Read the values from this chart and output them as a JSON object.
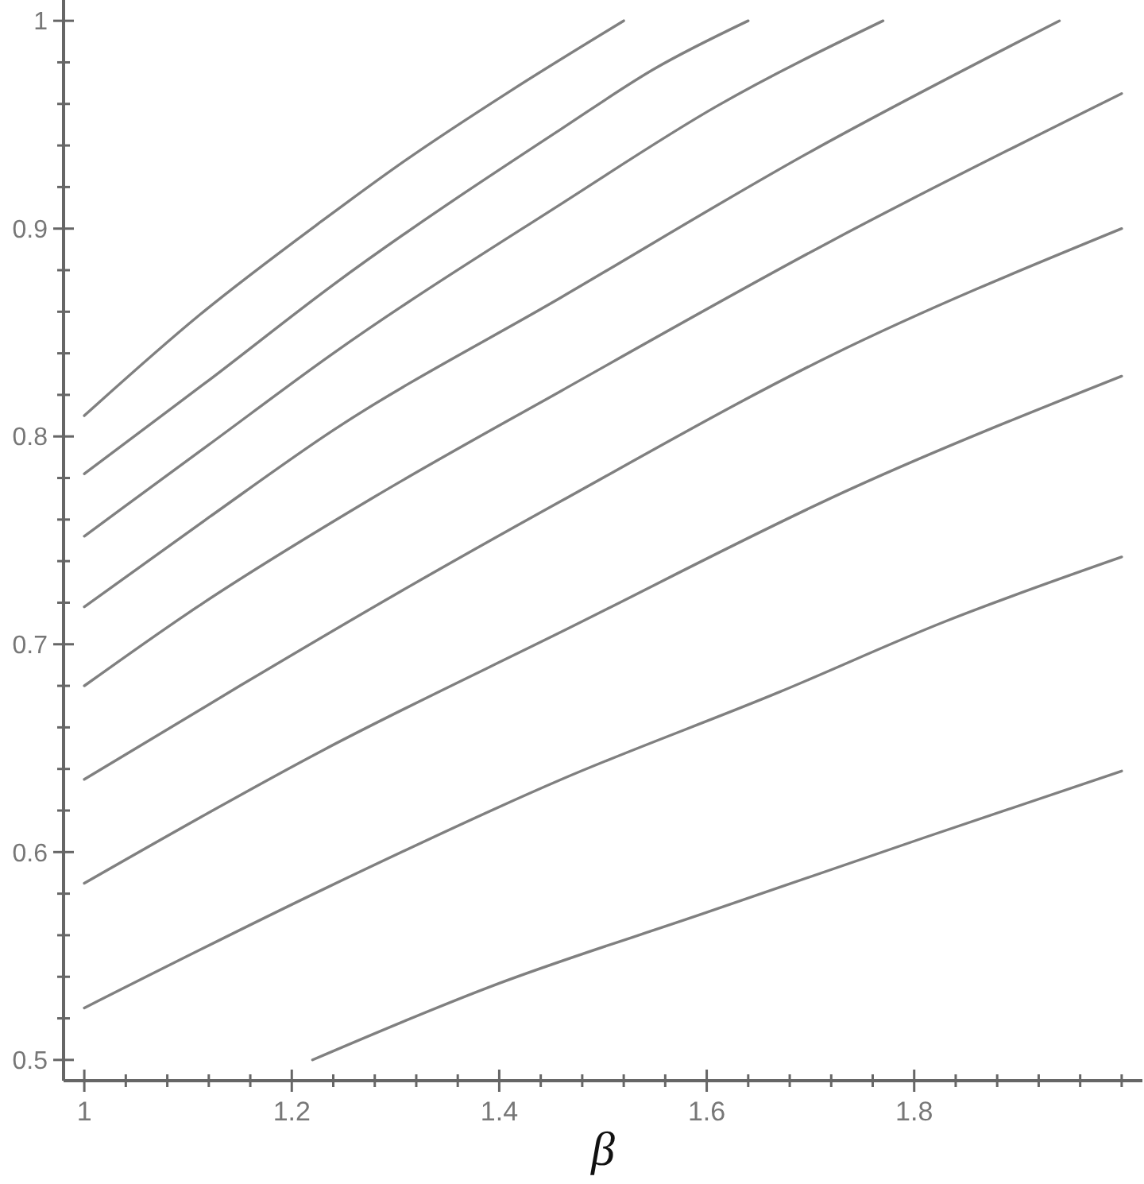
{
  "chart_data": {
    "type": "line",
    "xlabel": "β",
    "xlim": [
      0.98,
      2.02
    ],
    "ylim": [
      0.49,
      1.01
    ],
    "xticks": [
      1,
      {
        "value": 1.04,
        "label": null
      },
      {
        "value": 1.08,
        "label": null
      },
      {
        "value": 1.12,
        "label": null
      },
      {
        "value": 1.16,
        "label": null
      },
      1.2,
      {
        "value": 1.24,
        "label": null
      },
      {
        "value": 1.28,
        "label": null
      },
      {
        "value": 1.32,
        "label": null
      },
      {
        "value": 1.36,
        "label": null
      },
      1.4,
      {
        "value": 1.44,
        "label": null
      },
      {
        "value": 1.48,
        "label": null
      },
      {
        "value": 1.52,
        "label": null
      },
      {
        "value": 1.56,
        "label": null
      },
      1.6,
      {
        "value": 1.64,
        "label": null
      },
      {
        "value": 1.68,
        "label": null
      },
      {
        "value": 1.72,
        "label": null
      },
      {
        "value": 1.76,
        "label": null
      },
      1.8,
      {
        "value": 1.84,
        "label": null
      },
      {
        "value": 1.88,
        "label": null
      },
      {
        "value": 1.92,
        "label": null
      },
      {
        "value": 1.96,
        "label": null
      },
      {
        "value": 2,
        "label": null
      }
    ],
    "yticks": [
      0.5,
      {
        "value": 0.52,
        "label": null
      },
      {
        "value": 0.54,
        "label": null
      },
      {
        "value": 0.56,
        "label": null
      },
      {
        "value": 0.58,
        "label": null
      },
      0.6,
      {
        "value": 0.62,
        "label": null
      },
      {
        "value": 0.64,
        "label": null
      },
      {
        "value": 0.66,
        "label": null
      },
      {
        "value": 0.68,
        "label": null
      },
      0.7,
      {
        "value": 0.72,
        "label": null
      },
      {
        "value": 0.74,
        "label": null
      },
      {
        "value": 0.76,
        "label": null
      },
      {
        "value": 0.78,
        "label": null
      },
      0.8,
      {
        "value": 0.82,
        "label": null
      },
      {
        "value": 0.84,
        "label": null
      },
      {
        "value": 0.86,
        "label": null
      },
      {
        "value": 0.88,
        "label": null
      },
      0.9,
      {
        "value": 0.92,
        "label": null
      },
      {
        "value": 0.94,
        "label": null
      },
      {
        "value": 0.96,
        "label": null
      },
      {
        "value": 0.98,
        "label": null
      },
      1
    ],
    "grid": false,
    "marker": "none",
    "line_style": "solid",
    "series": [
      {
        "color": "#808080",
        "x": [
          1,
          1.11,
          1.23,
          1.31,
          1.41,
          1.52
        ],
        "values": [
          0.81,
          0.858,
          0.904,
          0.933,
          0.966,
          1
        ]
      },
      {
        "color": "#808080",
        "x": [
          1,
          1.12,
          1.24,
          1.46,
          1.55,
          1.64
        ],
        "values": [
          0.782,
          0.827,
          0.873,
          0.948,
          0.977,
          1
        ]
      },
      {
        "color": "#808080",
        "x": [
          1,
          1.12,
          1.24,
          1.46,
          1.61,
          1.77
        ],
        "values": [
          0.752,
          0.796,
          0.84,
          0.912,
          0.959,
          1
        ]
      },
      {
        "color": "#808080",
        "x": [
          1,
          1.12,
          1.24,
          1.46,
          1.7,
          1.94
        ],
        "values": [
          0.718,
          0.761,
          0.803,
          0.867,
          0.937,
          1
        ]
      },
      {
        "color": "#808080",
        "x": [
          1,
          1.1,
          1.28,
          1.46,
          1.72,
          2
        ],
        "values": [
          0.68,
          0.715,
          0.771,
          0.822,
          0.894,
          0.965
        ]
      },
      {
        "color": "#808080",
        "x": [
          1,
          1.15,
          1.3,
          1.46,
          1.72,
          2
        ],
        "values": [
          0.635,
          0.68,
          0.724,
          0.769,
          0.839,
          0.9
        ]
      },
      {
        "color": "#808080",
        "x": [
          1,
          1.23,
          1.46,
          1.74,
          2
        ],
        "values": [
          0.585,
          0.649,
          0.706,
          0.775,
          0.829
        ]
      },
      {
        "color": "#808080",
        "x": [
          1,
          1.23,
          1.46,
          1.67,
          1.83,
          2
        ],
        "values": [
          0.525,
          0.582,
          0.635,
          0.677,
          0.711,
          0.742
        ]
      },
      {
        "color": "#808080",
        "x": [
          1.22,
          1.39,
          1.6,
          1.81,
          2
        ],
        "values": [
          0.5,
          0.535,
          0.571,
          0.607,
          0.639
        ]
      }
    ]
  }
}
